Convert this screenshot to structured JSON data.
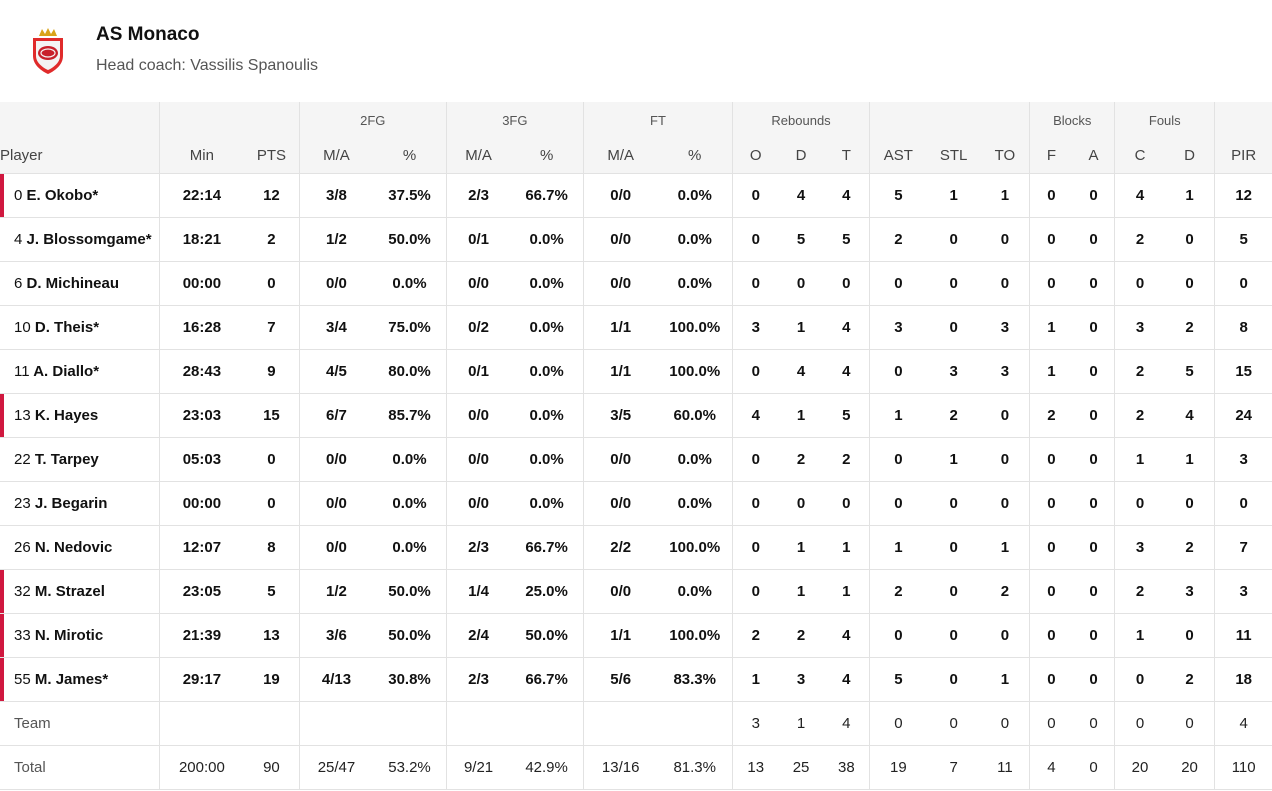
{
  "team": {
    "name": "AS Monaco",
    "coach": "Head coach: Vassilis Spanoulis"
  },
  "group_headers": {
    "fg2": "2FG",
    "fg3": "3FG",
    "ft": "FT",
    "rebounds": "Rebounds",
    "blocks": "Blocks",
    "fouls": "Fouls"
  },
  "column_headers": {
    "player": "Player",
    "min": "Min",
    "pts": "PTS",
    "fg2_ma": "M/A",
    "fg2_pct": "%",
    "fg3_ma": "M/A",
    "fg3_pct": "%",
    "ft_ma": "M/A",
    "ft_pct": "%",
    "reb_o": "O",
    "reb_d": "D",
    "reb_t": "T",
    "ast": "AST",
    "stl": "STL",
    "to": "TO",
    "blk_f": "F",
    "blk_a": "A",
    "foul_c": "C",
    "foul_d": "D",
    "pir": "PIR"
  },
  "players": [
    {
      "num": "0",
      "name": "E. Okobo*",
      "starter": true,
      "min": "22:14",
      "pts": "12",
      "fg2_ma": "3/8",
      "fg2_pct": "37.5%",
      "fg3_ma": "2/3",
      "fg3_pct": "66.7%",
      "ft_ma": "0/0",
      "ft_pct": "0.0%",
      "reb_o": "0",
      "reb_d": "4",
      "reb_t": "4",
      "ast": "5",
      "stl": "1",
      "to": "1",
      "blk_f": "0",
      "blk_a": "0",
      "foul_c": "4",
      "foul_d": "1",
      "pir": "12"
    },
    {
      "num": "4",
      "name": "J. Blossomgame*",
      "starter": false,
      "min": "18:21",
      "pts": "2",
      "fg2_ma": "1/2",
      "fg2_pct": "50.0%",
      "fg3_ma": "0/1",
      "fg3_pct": "0.0%",
      "ft_ma": "0/0",
      "ft_pct": "0.0%",
      "reb_o": "0",
      "reb_d": "5",
      "reb_t": "5",
      "ast": "2",
      "stl": "0",
      "to": "0",
      "blk_f": "0",
      "blk_a": "0",
      "foul_c": "2",
      "foul_d": "0",
      "pir": "5"
    },
    {
      "num": "6",
      "name": "D. Michineau",
      "starter": false,
      "min": "00:00",
      "pts": "0",
      "fg2_ma": "0/0",
      "fg2_pct": "0.0%",
      "fg3_ma": "0/0",
      "fg3_pct": "0.0%",
      "ft_ma": "0/0",
      "ft_pct": "0.0%",
      "reb_o": "0",
      "reb_d": "0",
      "reb_t": "0",
      "ast": "0",
      "stl": "0",
      "to": "0",
      "blk_f": "0",
      "blk_a": "0",
      "foul_c": "0",
      "foul_d": "0",
      "pir": "0"
    },
    {
      "num": "10",
      "name": "D. Theis*",
      "starter": false,
      "min": "16:28",
      "pts": "7",
      "fg2_ma": "3/4",
      "fg2_pct": "75.0%",
      "fg3_ma": "0/2",
      "fg3_pct": "0.0%",
      "ft_ma": "1/1",
      "ft_pct": "100.0%",
      "reb_o": "3",
      "reb_d": "1",
      "reb_t": "4",
      "ast": "3",
      "stl": "0",
      "to": "3",
      "blk_f": "1",
      "blk_a": "0",
      "foul_c": "3",
      "foul_d": "2",
      "pir": "8"
    },
    {
      "num": "11",
      "name": "A. Diallo*",
      "starter": false,
      "min": "28:43",
      "pts": "9",
      "fg2_ma": "4/5",
      "fg2_pct": "80.0%",
      "fg3_ma": "0/1",
      "fg3_pct": "0.0%",
      "ft_ma": "1/1",
      "ft_pct": "100.0%",
      "reb_o": "0",
      "reb_d": "4",
      "reb_t": "4",
      "ast": "0",
      "stl": "3",
      "to": "3",
      "blk_f": "1",
      "blk_a": "0",
      "foul_c": "2",
      "foul_d": "5",
      "pir": "15"
    },
    {
      "num": "13",
      "name": "K. Hayes",
      "starter": true,
      "min": "23:03",
      "pts": "15",
      "fg2_ma": "6/7",
      "fg2_pct": "85.7%",
      "fg3_ma": "0/0",
      "fg3_pct": "0.0%",
      "ft_ma": "3/5",
      "ft_pct": "60.0%",
      "reb_o": "4",
      "reb_d": "1",
      "reb_t": "5",
      "ast": "1",
      "stl": "2",
      "to": "0",
      "blk_f": "2",
      "blk_a": "0",
      "foul_c": "2",
      "foul_d": "4",
      "pir": "24"
    },
    {
      "num": "22",
      "name": "T. Tarpey",
      "starter": false,
      "min": "05:03",
      "pts": "0",
      "fg2_ma": "0/0",
      "fg2_pct": "0.0%",
      "fg3_ma": "0/0",
      "fg3_pct": "0.0%",
      "ft_ma": "0/0",
      "ft_pct": "0.0%",
      "reb_o": "0",
      "reb_d": "2",
      "reb_t": "2",
      "ast": "0",
      "stl": "1",
      "to": "0",
      "blk_f": "0",
      "blk_a": "0",
      "foul_c": "1",
      "foul_d": "1",
      "pir": "3"
    },
    {
      "num": "23",
      "name": "J. Begarin",
      "starter": false,
      "min": "00:00",
      "pts": "0",
      "fg2_ma": "0/0",
      "fg2_pct": "0.0%",
      "fg3_ma": "0/0",
      "fg3_pct": "0.0%",
      "ft_ma": "0/0",
      "ft_pct": "0.0%",
      "reb_o": "0",
      "reb_d": "0",
      "reb_t": "0",
      "ast": "0",
      "stl": "0",
      "to": "0",
      "blk_f": "0",
      "blk_a": "0",
      "foul_c": "0",
      "foul_d": "0",
      "pir": "0"
    },
    {
      "num": "26",
      "name": "N. Nedovic",
      "starter": false,
      "min": "12:07",
      "pts": "8",
      "fg2_ma": "0/0",
      "fg2_pct": "0.0%",
      "fg3_ma": "2/3",
      "fg3_pct": "66.7%",
      "ft_ma": "2/2",
      "ft_pct": "100.0%",
      "reb_o": "0",
      "reb_d": "1",
      "reb_t": "1",
      "ast": "1",
      "stl": "0",
      "to": "1",
      "blk_f": "0",
      "blk_a": "0",
      "foul_c": "3",
      "foul_d": "2",
      "pir": "7"
    },
    {
      "num": "32",
      "name": "M. Strazel",
      "starter": true,
      "min": "23:05",
      "pts": "5",
      "fg2_ma": "1/2",
      "fg2_pct": "50.0%",
      "fg3_ma": "1/4",
      "fg3_pct": "25.0%",
      "ft_ma": "0/0",
      "ft_pct": "0.0%",
      "reb_o": "0",
      "reb_d": "1",
      "reb_t": "1",
      "ast": "2",
      "stl": "0",
      "to": "2",
      "blk_f": "0",
      "blk_a": "0",
      "foul_c": "2",
      "foul_d": "3",
      "pir": "3"
    },
    {
      "num": "33",
      "name": "N. Mirotic",
      "starter": true,
      "min": "21:39",
      "pts": "13",
      "fg2_ma": "3/6",
      "fg2_pct": "50.0%",
      "fg3_ma": "2/4",
      "fg3_pct": "50.0%",
      "ft_ma": "1/1",
      "ft_pct": "100.0%",
      "reb_o": "2",
      "reb_d": "2",
      "reb_t": "4",
      "ast": "0",
      "stl": "0",
      "to": "0",
      "blk_f": "0",
      "blk_a": "0",
      "foul_c": "1",
      "foul_d": "0",
      "pir": "11"
    },
    {
      "num": "55",
      "name": "M. James*",
      "starter": true,
      "min": "29:17",
      "pts": "19",
      "fg2_ma": "4/13",
      "fg2_pct": "30.8%",
      "fg3_ma": "2/3",
      "fg3_pct": "66.7%",
      "ft_ma": "5/6",
      "ft_pct": "83.3%",
      "reb_o": "1",
      "reb_d": "3",
      "reb_t": "4",
      "ast": "5",
      "stl": "0",
      "to": "1",
      "blk_f": "0",
      "blk_a": "0",
      "foul_c": "0",
      "foul_d": "2",
      "pir": "18"
    }
  ],
  "team_row": {
    "label": "Team",
    "min": "",
    "pts": "",
    "fg2_ma": "",
    "fg2_pct": "",
    "fg3_ma": "",
    "fg3_pct": "",
    "ft_ma": "",
    "ft_pct": "",
    "reb_o": "3",
    "reb_d": "1",
    "reb_t": "4",
    "ast": "0",
    "stl": "0",
    "to": "0",
    "blk_f": "0",
    "blk_a": "0",
    "foul_c": "0",
    "foul_d": "0",
    "pir": "4"
  },
  "total_row": {
    "label": "Total",
    "min": "200:00",
    "pts": "90",
    "fg2_ma": "25/47",
    "fg2_pct": "53.2%",
    "fg3_ma": "9/21",
    "fg3_pct": "42.9%",
    "ft_ma": "13/16",
    "ft_pct": "81.3%",
    "reb_o": "13",
    "reb_d": "25",
    "reb_t": "38",
    "ast": "19",
    "stl": "7",
    "to": "11",
    "blk_f": "4",
    "blk_a": "0",
    "foul_c": "20",
    "foul_d": "20",
    "pir": "110"
  },
  "colors": {
    "starter_marker": "#d0183f",
    "header_bg": "#f5f5f5",
    "border": "#e2e2e2"
  }
}
